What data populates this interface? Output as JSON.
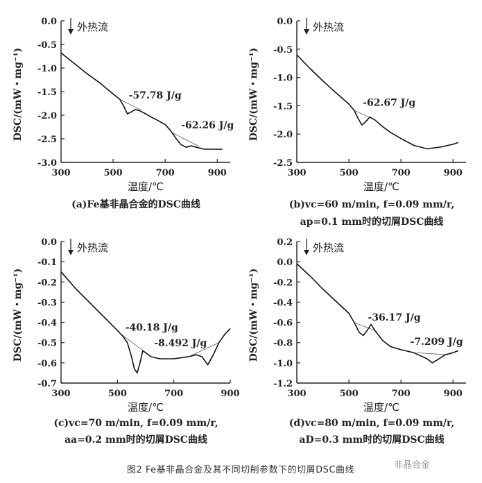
{
  "figure_caption": "图2 Fe基非晶合金及其不同切削参数下的切屑DSC曲线",
  "watermark": "非晶合金",
  "chart_data": [
    {
      "type": "line",
      "panel_caption": [
        "(a)Fe基非晶合金的DSC曲线"
      ],
      "xlabel": "温度/℃",
      "ylabel": "DSC/(mW・mg⁻¹)",
      "xlim": [
        300,
        950
      ],
      "ylim": [
        -3.0,
        0.0
      ],
      "xticks": [
        300,
        500,
        700,
        900
      ],
      "yticks": [
        0.0,
        -0.5,
        -1.0,
        -1.5,
        -2.0,
        -2.5,
        -3.0
      ],
      "ytick_labels": [
        "0.0",
        "-0.5",
        "-1.0",
        "-1.5",
        "-2.0",
        "-2.5",
        "-3.0"
      ],
      "heat_flow_label": "外热流",
      "annotations": [
        "-57.78 J/g",
        "-62.26 J/g"
      ],
      "x": [
        300,
        350,
        400,
        450,
        500,
        525,
        540,
        555,
        570,
        585,
        600,
        625,
        650,
        675,
        700,
        720,
        740,
        760,
        780,
        800,
        820,
        850,
        880,
        920
      ],
      "y": [
        -0.68,
        -0.9,
        -1.12,
        -1.32,
        -1.55,
        -1.66,
        -1.8,
        -1.97,
        -1.93,
        -1.88,
        -1.9,
        -1.97,
        -2.05,
        -2.12,
        -2.2,
        -2.32,
        -2.48,
        -2.62,
        -2.68,
        -2.65,
        -2.68,
        -2.72,
        -2.72,
        -2.72
      ]
    },
    {
      "type": "line",
      "panel_caption": [
        "(b)vc=60 m/min,  f=0.09 mm/r,",
        "ap=0.1 mm时的切屑DSC曲线"
      ],
      "xlabel": "温度/℃",
      "ylabel": "DSC/(mW・mg⁻¹)",
      "xlim": [
        300,
        950
      ],
      "ylim": [
        -2.5,
        0.0
      ],
      "xticks": [
        300,
        500,
        700,
        900
      ],
      "yticks": [
        0.0,
        -0.5,
        -1.0,
        -1.5,
        -2.0,
        -2.5
      ],
      "ytick_labels": [
        "0.0",
        "-0.5",
        "-1.0",
        "-1.5",
        "-2.0",
        "-2.5"
      ],
      "heat_flow_label": "外热流",
      "annotations": [
        "-62.67 J/g"
      ],
      "x": [
        300,
        350,
        400,
        450,
        500,
        520,
        535,
        550,
        565,
        580,
        600,
        630,
        660,
        700,
        750,
        800,
        850,
        900,
        920
      ],
      "y": [
        -0.6,
        -0.84,
        -1.06,
        -1.27,
        -1.47,
        -1.58,
        -1.72,
        -1.84,
        -1.78,
        -1.7,
        -1.75,
        -1.87,
        -1.97,
        -2.08,
        -2.2,
        -2.26,
        -2.23,
        -2.18,
        -2.15
      ]
    },
    {
      "type": "line",
      "panel_caption": [
        "(c)vc=70 m/min,  f=0.09 mm/r,",
        "aa=0.2 mm时的切屑DSC曲线"
      ],
      "xlabel": "温度/℃",
      "ylabel": "DSC/(mW・mg⁻¹)",
      "xlim": [
        300,
        900
      ],
      "ylim": [
        -0.7,
        0.0
      ],
      "xticks": [
        300,
        500,
        700,
        900
      ],
      "yticks": [
        0.0,
        -0.1,
        -0.2,
        -0.3,
        -0.4,
        -0.5,
        -0.6,
        -0.7
      ],
      "ytick_labels": [
        "0.0",
        "-0.1",
        "-0.2",
        "-0.3",
        "-0.4",
        "-0.5",
        "-0.6",
        "-0.7"
      ],
      "heat_flow_label": "外热流",
      "annotations": [
        "-40.18 J/g",
        "-8.492 J/g"
      ],
      "x": [
        300,
        350,
        400,
        450,
        500,
        520,
        535,
        550,
        560,
        570,
        580,
        590,
        600,
        620,
        650,
        700,
        750,
        780,
        800,
        820,
        840,
        860,
        880,
        900
      ],
      "y": [
        -0.15,
        -0.23,
        -0.3,
        -0.37,
        -0.44,
        -0.47,
        -0.5,
        -0.57,
        -0.63,
        -0.65,
        -0.6,
        -0.54,
        -0.55,
        -0.57,
        -0.58,
        -0.58,
        -0.57,
        -0.56,
        -0.57,
        -0.61,
        -0.56,
        -0.5,
        -0.46,
        -0.43
      ]
    },
    {
      "type": "line",
      "panel_caption": [
        "(d)vc=80 m/min,  f=0.09 mm/r,",
        "aD=0.3 mm时的切屑DSC曲线"
      ],
      "xlabel": "温度/℃",
      "ylabel": "DSC/(mW・mg⁻¹)",
      "xlim": [
        300,
        950
      ],
      "ylim": [
        -1.2,
        0.2
      ],
      "xticks": [
        300,
        500,
        700,
        900
      ],
      "yticks": [
        0.2,
        0.0,
        -0.2,
        -0.4,
        -0.6,
        -0.8,
        -1.0,
        -1.2
      ],
      "ytick_labels": [
        "0.2",
        "0.0",
        "-0.2",
        "-0.4",
        "-0.6",
        "-0.8",
        "-1.0",
        "-1.2"
      ],
      "heat_flow_label": "外热流",
      "annotations": [
        "-36.17 J/g",
        "-7.209 J/g"
      ],
      "x": [
        300,
        350,
        400,
        450,
        500,
        520,
        540,
        555,
        570,
        585,
        600,
        630,
        660,
        700,
        750,
        800,
        820,
        840,
        870,
        900,
        920
      ],
      "y": [
        -0.02,
        -0.14,
        -0.27,
        -0.39,
        -0.51,
        -0.6,
        -0.7,
        -0.73,
        -0.68,
        -0.62,
        -0.68,
        -0.78,
        -0.84,
        -0.87,
        -0.9,
        -0.96,
        -1.0,
        -0.97,
        -0.92,
        -0.9,
        -0.88
      ]
    }
  ]
}
